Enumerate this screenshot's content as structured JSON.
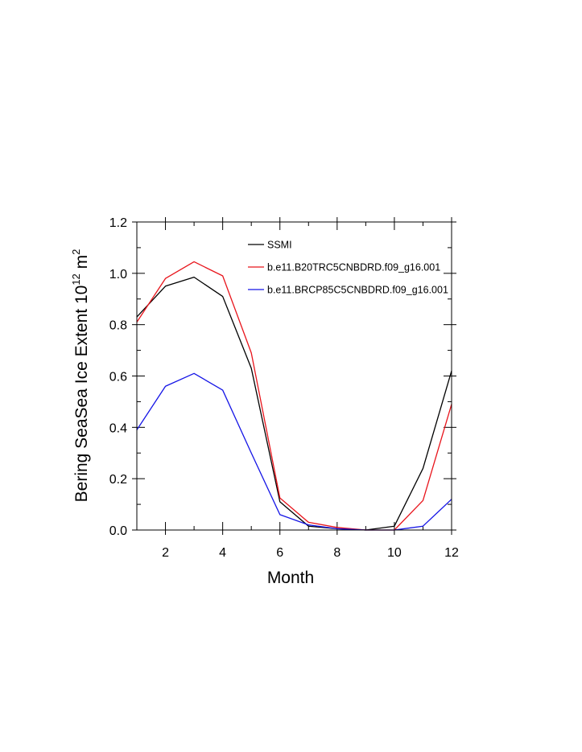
{
  "chart_data": {
    "type": "line",
    "title": "",
    "xlabel": "Month",
    "ylabel_main": "Bering SeaSea Ice Extent 10",
    "ylabel_sup": "12",
    "ylabel_unit": " m",
    "ylabel_unit_sup": "2",
    "xlim": [
      1,
      12
    ],
    "ylim": [
      0.0,
      1.2
    ],
    "x_ticks": [
      2,
      4,
      6,
      8,
      10,
      12
    ],
    "x_tick_labels": [
      "2",
      "4",
      "6",
      "8",
      "10",
      "12"
    ],
    "y_ticks": [
      0.0,
      0.2,
      0.4,
      0.6,
      0.8,
      1.0,
      1.2
    ],
    "y_tick_labels": [
      "0.0",
      "0.2",
      "0.4",
      "0.6",
      "0.8",
      "1.0",
      "1.2"
    ],
    "x": [
      1,
      2,
      3,
      4,
      5,
      6,
      7,
      8,
      9,
      10,
      11,
      12
    ],
    "legend_position": "top-right",
    "series": [
      {
        "name": "SSMI",
        "color": "#000000",
        "values": [
          0.83,
          0.95,
          0.985,
          0.91,
          0.63,
          0.11,
          0.015,
          0.005,
          0.0,
          0.015,
          0.24,
          0.62
        ]
      },
      {
        "name": "b.e11.B20TRC5CNBDRD.f09_g16.001",
        "color": "#e8141b",
        "values": [
          0.81,
          0.98,
          1.045,
          0.99,
          0.69,
          0.125,
          0.03,
          0.01,
          0.0,
          0.0,
          0.115,
          0.49
        ]
      },
      {
        "name": "b.e11.BRCP85C5CNBDRD.f09_g16.001",
        "color": "#1414e6",
        "values": [
          0.39,
          0.56,
          0.61,
          0.545,
          0.3,
          0.06,
          0.02,
          0.005,
          0.0,
          0.0,
          0.015,
          0.12
        ]
      }
    ]
  }
}
